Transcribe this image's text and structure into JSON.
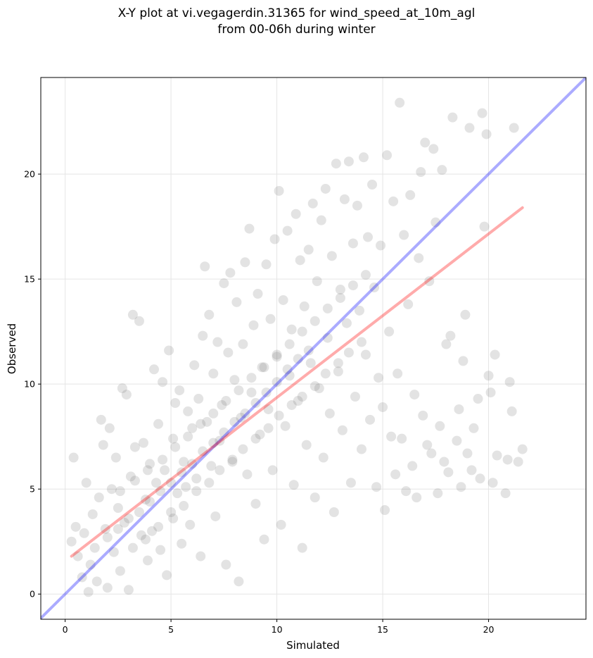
{
  "title_line1": "X-Y plot at vi.vegagerdin.31365 for wind_speed_at_10m_agl",
  "title_line2": "from 00-06h during winter",
  "chart_data": {
    "type": "scatter",
    "title": "X-Y plot at vi.vegagerdin.31365 for wind_speed_at_10m_agl from 00-06h during winter",
    "xlabel": "Simulated",
    "ylabel": "Observed",
    "xlim": [
      -1.15,
      24.6
    ],
    "ylim": [
      -1.2,
      24.6
    ],
    "xticks": [
      0,
      5,
      10,
      15,
      20
    ],
    "yticks": [
      0,
      5,
      10,
      15,
      20
    ],
    "grid": true,
    "point_color": "#666666",
    "identity_line": {
      "color": "#0000ff",
      "points": [
        [
          -1.15,
          -1.15
        ],
        [
          24.6,
          24.6
        ]
      ]
    },
    "regression_line": {
      "color": "#ff0000",
      "points": [
        [
          0.3,
          1.8
        ],
        [
          21.6,
          18.4
        ]
      ]
    },
    "points": [
      [
        0.3,
        2.5
      ],
      [
        0.4,
        6.5
      ],
      [
        0.5,
        3.2
      ],
      [
        0.6,
        1.8
      ],
      [
        0.8,
        0.8
      ],
      [
        0.9,
        2.9
      ],
      [
        1.0,
        5.3
      ],
      [
        1.1,
        0.1
      ],
      [
        1.2,
        1.4
      ],
      [
        1.3,
        3.8
      ],
      [
        1.4,
        2.2
      ],
      [
        1.5,
        0.6
      ],
      [
        1.6,
        4.6
      ],
      [
        1.7,
        8.3
      ],
      [
        1.8,
        7.1
      ],
      [
        1.9,
        3.1
      ],
      [
        2.0,
        0.3
      ],
      [
        2.1,
        7.9
      ],
      [
        2.2,
        5.0
      ],
      [
        2.3,
        2.0
      ],
      [
        2.4,
        6.5
      ],
      [
        2.5,
        4.1
      ],
      [
        2.6,
        1.1
      ],
      [
        2.7,
        9.8
      ],
      [
        2.8,
        3.4
      ],
      [
        2.9,
        9.5
      ],
      [
        3.0,
        0.2
      ],
      [
        3.1,
        5.6
      ],
      [
        3.2,
        13.3
      ],
      [
        3.3,
        7.0
      ],
      [
        3.5,
        13.0
      ],
      [
        3.6,
        2.8
      ],
      [
        3.7,
        7.2
      ],
      [
        3.8,
        4.5
      ],
      [
        3.9,
        1.6
      ],
      [
        4.0,
        6.2
      ],
      [
        4.1,
        3.0
      ],
      [
        4.2,
        10.7
      ],
      [
        4.3,
        5.3
      ],
      [
        4.4,
        8.1
      ],
      [
        4.5,
        2.1
      ],
      [
        4.6,
        10.1
      ],
      [
        4.7,
        5.9
      ],
      [
        4.8,
        0.9
      ],
      [
        4.9,
        11.6
      ],
      [
        5.0,
        3.9
      ],
      [
        5.1,
        7.4
      ],
      [
        5.2,
        9.1
      ],
      [
        5.3,
        4.8
      ],
      [
        5.4,
        9.7
      ],
      [
        5.5,
        2.4
      ],
      [
        5.6,
        6.3
      ],
      [
        5.7,
        5.1
      ],
      [
        5.8,
        8.7
      ],
      [
        5.9,
        3.3
      ],
      [
        6.0,
        7.9
      ],
      [
        6.1,
        10.9
      ],
      [
        6.2,
        5.5
      ],
      [
        6.3,
        9.3
      ],
      [
        6.4,
        1.8
      ],
      [
        6.5,
        12.3
      ],
      [
        6.6,
        15.6
      ],
      [
        6.7,
        8.2
      ],
      [
        6.8,
        13.3
      ],
      [
        6.9,
        6.1
      ],
      [
        7.0,
        10.5
      ],
      [
        7.1,
        3.7
      ],
      [
        7.2,
        12.0
      ],
      [
        7.3,
        7.3
      ],
      [
        7.4,
        9.0
      ],
      [
        7.5,
        14.8
      ],
      [
        7.6,
        1.4
      ],
      [
        7.7,
        11.5
      ],
      [
        7.8,
        15.3
      ],
      [
        7.9,
        6.4
      ],
      [
        8.0,
        10.2
      ],
      [
        8.1,
        13.9
      ],
      [
        8.2,
        0.6
      ],
      [
        8.3,
        8.4
      ],
      [
        8.4,
        11.9
      ],
      [
        8.5,
        15.8
      ],
      [
        8.6,
        5.7
      ],
      [
        8.7,
        17.4
      ],
      [
        8.8,
        9.6
      ],
      [
        8.9,
        12.8
      ],
      [
        9.0,
        4.3
      ],
      [
        9.1,
        14.3
      ],
      [
        9.2,
        7.6
      ],
      [
        9.3,
        10.8
      ],
      [
        9.4,
        2.6
      ],
      [
        9.5,
        15.7
      ],
      [
        9.6,
        8.8
      ],
      [
        9.7,
        13.1
      ],
      [
        9.8,
        5.9
      ],
      [
        9.9,
        16.9
      ],
      [
        10.0,
        11.3
      ],
      [
        10.1,
        19.2
      ],
      [
        10.2,
        3.3
      ],
      [
        10.3,
        14.0
      ],
      [
        10.4,
        8.0
      ],
      [
        10.5,
        17.3
      ],
      [
        10.6,
        10.4
      ],
      [
        10.7,
        12.6
      ],
      [
        10.8,
        5.2
      ],
      [
        10.9,
        18.1
      ],
      [
        11.0,
        9.2
      ],
      [
        11.1,
        15.9
      ],
      [
        11.2,
        2.2
      ],
      [
        11.3,
        13.7
      ],
      [
        11.4,
        7.1
      ],
      [
        11.5,
        16.4
      ],
      [
        11.6,
        11.0
      ],
      [
        11.7,
        18.6
      ],
      [
        11.8,
        4.6
      ],
      [
        11.9,
        14.9
      ],
      [
        12.0,
        9.8
      ],
      [
        12.1,
        17.8
      ],
      [
        12.2,
        6.5
      ],
      [
        12.3,
        19.3
      ],
      [
        12.4,
        12.2
      ],
      [
        12.5,
        8.6
      ],
      [
        12.6,
        16.1
      ],
      [
        12.7,
        3.9
      ],
      [
        12.8,
        20.5
      ],
      [
        12.9,
        10.6
      ],
      [
        13.0,
        14.5
      ],
      [
        13.1,
        7.8
      ],
      [
        13.2,
        18.8
      ],
      [
        13.3,
        12.9
      ],
      [
        13.4,
        20.6
      ],
      [
        13.5,
        5.3
      ],
      [
        13.6,
        16.7
      ],
      [
        13.7,
        9.4
      ],
      [
        13.8,
        18.5
      ],
      [
        13.9,
        13.5
      ],
      [
        14.0,
        6.9
      ],
      [
        14.1,
        20.8
      ],
      [
        14.2,
        11.4
      ],
      [
        14.3,
        17.0
      ],
      [
        14.4,
        8.3
      ],
      [
        14.5,
        19.5
      ],
      [
        14.6,
        14.6
      ],
      [
        14.7,
        5.1
      ],
      [
        14.8,
        10.3
      ],
      [
        14.9,
        16.6
      ],
      [
        15.0,
        8.9
      ],
      [
        15.1,
        4.0
      ],
      [
        15.2,
        20.9
      ],
      [
        15.3,
        12.5
      ],
      [
        15.4,
        7.5
      ],
      [
        15.5,
        18.7
      ],
      [
        15.6,
        5.7
      ],
      [
        15.7,
        10.5
      ],
      [
        15.8,
        23.4
      ],
      [
        15.9,
        7.4
      ],
      [
        16.0,
        17.1
      ],
      [
        16.1,
        4.9
      ],
      [
        16.2,
        13.8
      ],
      [
        16.3,
        19.0
      ],
      [
        16.4,
        6.1
      ],
      [
        16.5,
        9.5
      ],
      [
        16.6,
        4.6
      ],
      [
        16.7,
        16.0
      ],
      [
        16.8,
        20.1
      ],
      [
        16.9,
        8.5
      ],
      [
        17.0,
        21.5
      ],
      [
        17.1,
        7.1
      ],
      [
        17.2,
        14.9
      ],
      [
        17.3,
        6.7
      ],
      [
        17.4,
        21.2
      ],
      [
        17.5,
        17.7
      ],
      [
        17.6,
        4.8
      ],
      [
        17.7,
        8.0
      ],
      [
        17.8,
        20.2
      ],
      [
        17.9,
        6.3
      ],
      [
        18.0,
        11.9
      ],
      [
        18.1,
        5.8
      ],
      [
        18.2,
        12.3
      ],
      [
        18.3,
        22.7
      ],
      [
        18.5,
        7.3
      ],
      [
        18.6,
        8.8
      ],
      [
        18.7,
        5.1
      ],
      [
        18.8,
        11.1
      ],
      [
        18.9,
        13.3
      ],
      [
        19.0,
        6.7
      ],
      [
        19.1,
        22.2
      ],
      [
        19.2,
        5.9
      ],
      [
        19.3,
        7.9
      ],
      [
        19.5,
        9.3
      ],
      [
        19.6,
        5.5
      ],
      [
        19.7,
        22.9
      ],
      [
        19.8,
        17.5
      ],
      [
        19.9,
        21.9
      ],
      [
        20.0,
        10.4
      ],
      [
        20.1,
        9.6
      ],
      [
        20.2,
        5.3
      ],
      [
        20.3,
        11.4
      ],
      [
        20.4,
        6.6
      ],
      [
        20.8,
        4.8
      ],
      [
        20.9,
        6.4
      ],
      [
        21.0,
        10.1
      ],
      [
        21.1,
        8.7
      ],
      [
        21.2,
        22.2
      ],
      [
        21.4,
        6.3
      ],
      [
        21.6,
        6.9
      ],
      [
        2.0,
        2.7
      ],
      [
        2.5,
        3.1
      ],
      [
        3.0,
        3.6
      ],
      [
        3.5,
        3.9
      ],
      [
        4.0,
        4.4
      ],
      [
        4.5,
        4.9
      ],
      [
        5.0,
        5.3
      ],
      [
        5.5,
        5.8
      ],
      [
        6.0,
        6.2
      ],
      [
        6.5,
        6.8
      ],
      [
        7.0,
        7.2
      ],
      [
        7.5,
        7.7
      ],
      [
        8.0,
        8.2
      ],
      [
        8.5,
        8.6
      ],
      [
        9.0,
        9.1
      ],
      [
        9.5,
        9.6
      ],
      [
        10.0,
        10.1
      ],
      [
        10.5,
        10.7
      ],
      [
        11.0,
        11.2
      ],
      [
        11.5,
        11.6
      ],
      [
        3.2,
        2.2
      ],
      [
        3.8,
        2.6
      ],
      [
        4.4,
        3.2
      ],
      [
        5.1,
        3.6
      ],
      [
        5.6,
        4.2
      ],
      [
        6.2,
        4.9
      ],
      [
        6.8,
        5.3
      ],
      [
        7.3,
        5.9
      ],
      [
        7.9,
        6.3
      ],
      [
        8.4,
        6.9
      ],
      [
        9.0,
        7.4
      ],
      [
        9.6,
        7.9
      ],
      [
        10.1,
        8.5
      ],
      [
        10.7,
        9.0
      ],
      [
        11.2,
        9.4
      ],
      [
        11.8,
        9.9
      ],
      [
        12.3,
        10.5
      ],
      [
        12.9,
        11.0
      ],
      [
        13.4,
        11.5
      ],
      [
        14.0,
        12.0
      ],
      [
        2.6,
        4.9
      ],
      [
        3.3,
        5.4
      ],
      [
        3.9,
        5.9
      ],
      [
        4.6,
        6.4
      ],
      [
        5.2,
        7.0
      ],
      [
        5.8,
        7.5
      ],
      [
        6.4,
        8.1
      ],
      [
        7.0,
        8.6
      ],
      [
        7.6,
        9.2
      ],
      [
        8.2,
        9.7
      ],
      [
        8.8,
        10.3
      ],
      [
        9.4,
        10.8
      ],
      [
        10.0,
        11.4
      ],
      [
        10.6,
        11.9
      ],
      [
        11.2,
        12.5
      ],
      [
        11.8,
        13.0
      ],
      [
        12.4,
        13.6
      ],
      [
        13.0,
        14.1
      ],
      [
        13.6,
        14.7
      ],
      [
        14.2,
        15.2
      ]
    ]
  }
}
